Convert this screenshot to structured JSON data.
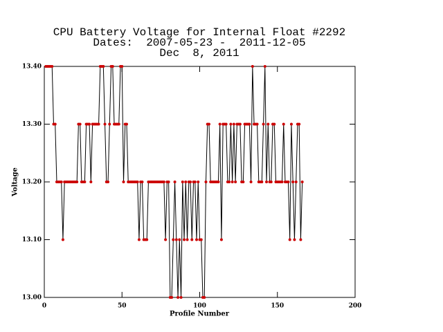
{
  "chart_data": {
    "type": "line",
    "title": [
      "CPU Battery Voltage for Internal Float #2292",
      "Dates:  2007-05-23 -  2011-12-05",
      "Dec  8, 2011"
    ],
    "xlabel": "Profile Number",
    "ylabel": "Voltage",
    "xlim": [
      0,
      200
    ],
    "xticks": [
      0,
      50,
      100,
      150,
      200
    ],
    "ylim": [
      13.0,
      13.4
    ],
    "yticks": [
      {
        "value": 13.0,
        "label": "13.00"
      },
      {
        "value": 13.1,
        "label": "13.10"
      },
      {
        "value": 13.2,
        "label": "13.20"
      },
      {
        "value": 13.3,
        "label": "13.30"
      },
      {
        "value": 13.4,
        "label": "13.40"
      }
    ],
    "series": [
      {
        "line_color": "#000000",
        "marker_color": "#cc0000",
        "x": [
          1,
          2,
          3,
          4,
          5,
          6,
          7,
          8,
          9,
          10,
          11,
          12,
          13,
          14,
          15,
          16,
          17,
          18,
          19,
          20,
          21,
          22,
          23,
          24,
          25,
          26,
          27,
          28,
          29,
          30,
          31,
          32,
          33,
          34,
          35,
          36,
          37,
          38,
          39,
          40,
          41,
          42,
          43,
          44,
          45,
          46,
          47,
          48,
          49,
          50,
          51,
          52,
          53,
          54,
          55,
          56,
          57,
          58,
          59,
          60,
          61,
          62,
          63,
          64,
          65,
          66,
          67,
          68,
          69,
          70,
          71,
          72,
          73,
          74,
          75,
          76,
          77,
          78,
          79,
          80,
          81,
          82,
          83,
          84,
          85,
          86,
          87,
          88,
          89,
          90,
          91,
          92,
          93,
          94,
          95,
          96,
          97,
          98,
          99,
          100,
          101,
          102,
          103,
          104,
          105,
          106,
          107,
          108,
          109,
          110,
          111,
          112,
          113,
          114,
          115,
          116,
          117,
          118,
          119,
          120,
          121,
          122,
          123,
          124,
          125,
          126,
          127,
          128,
          129,
          130,
          131,
          132,
          133,
          134,
          135,
          136,
          137,
          138,
          139,
          140,
          141,
          142,
          143,
          144,
          145,
          146,
          147,
          148,
          149,
          150,
          151,
          152,
          153,
          154,
          155,
          156,
          157,
          158,
          159,
          160,
          161,
          162,
          163,
          164,
          165,
          166
        ],
        "values": [
          13.4,
          13.4,
          13.4,
          13.4,
          13.4,
          13.3,
          13.3,
          13.2,
          13.2,
          13.2,
          13.2,
          13.1,
          13.2,
          13.2,
          13.2,
          13.2,
          13.2,
          13.2,
          13.2,
          13.2,
          13.2,
          13.3,
          13.3,
          13.2,
          13.2,
          13.2,
          13.3,
          13.3,
          13.3,
          13.2,
          13.3,
          13.3,
          13.3,
          13.3,
          13.3,
          13.4,
          13.4,
          13.4,
          13.3,
          13.2,
          13.2,
          13.3,
          13.4,
          13.4,
          13.3,
          13.3,
          13.3,
          13.3,
          13.4,
          13.4,
          13.2,
          13.3,
          13.3,
          13.2,
          13.2,
          13.2,
          13.2,
          13.2,
          13.2,
          13.2,
          13.1,
          13.2,
          13.2,
          13.1,
          13.1,
          13.1,
          13.2,
          13.2,
          13.2,
          13.2,
          13.2,
          13.2,
          13.2,
          13.2,
          13.2,
          13.2,
          13.2,
          13.1,
          13.2,
          13.2,
          13.0,
          13.0,
          13.1,
          13.2,
          13.1,
          13.0,
          13.1,
          13.0,
          13.2,
          13.1,
          13.2,
          13.1,
          13.2,
          13.2,
          13.1,
          13.2,
          13.2,
          13.1,
          13.2,
          13.1,
          13.1,
          13.0,
          13.0,
          13.2,
          13.3,
          13.3,
          13.2,
          13.2,
          13.2,
          13.2,
          13.2,
          13.2,
          13.3,
          13.1,
          13.3,
          13.3,
          13.3,
          13.2,
          13.2,
          13.3,
          13.2,
          13.3,
          13.2,
          13.3,
          13.3,
          13.3,
          13.2,
          13.2,
          13.3,
          13.3,
          13.3,
          13.3,
          13.2,
          13.4,
          13.3,
          13.3,
          13.3,
          13.2,
          13.2,
          13.2,
          13.3,
          13.4,
          13.2,
          13.3,
          13.2,
          13.2,
          13.3,
          13.3,
          13.2,
          13.2,
          13.2,
          13.2,
          13.2,
          13.3,
          13.2,
          13.2,
          13.2,
          13.1,
          13.3,
          13.2,
          13.1,
          13.2,
          13.3,
          13.3,
          13.1,
          13.2
        ]
      }
    ]
  }
}
